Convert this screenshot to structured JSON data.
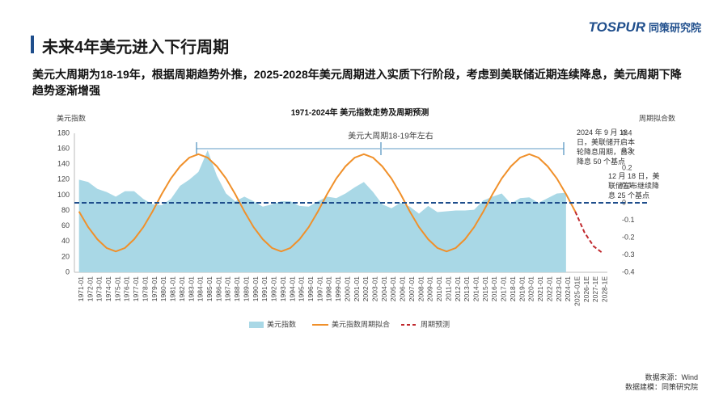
{
  "header": {
    "title": "未来4年美元进入下行周期",
    "logo": "TOSPUR",
    "logo_sub": "同策研究院",
    "subtitle": "美元大周期为18-19年，根据周期趋势外推，2025-2028年美元周期进入实质下行阶段，考虑到美联储近期连续降息，美元周期下降趋势逐渐增强"
  },
  "chart_data": {
    "type": "combo",
    "title": "1971-2024年 美元指数走势及周期预测",
    "ylabel": "美元指数",
    "y2label": "周期拟合数",
    "categories": [
      "1971-01",
      "1972-01",
      "1973-01",
      "1974-01",
      "1975-01",
      "1976-01",
      "1977-01",
      "1978-01",
      "1979-01",
      "1980-01",
      "1981-01",
      "1982-01",
      "1983-01",
      "1984-01",
      "1985-01",
      "1986-01",
      "1987-01",
      "1988-01",
      "1989-01",
      "1990-01",
      "1991-01",
      "1992-01",
      "1993-01",
      "1994-01",
      "1995-01",
      "1996-01",
      "1997-01",
      "1998-01",
      "1999-01",
      "2000-01",
      "2001-01",
      "2002-01",
      "2003-01",
      "2004-01",
      "2005-01",
      "2006-01",
      "2007-01",
      "2008-01",
      "2009-01",
      "2010-01",
      "2011-01",
      "2012-01",
      "2013-01",
      "2014-01",
      "2015-01",
      "2016-01",
      "2017-01",
      "2018-01",
      "2019-01",
      "2020-01",
      "2021-01",
      "2022-01",
      "2023-01",
      "2024-01",
      "2025-01E",
      "2026-1E",
      "2027-1E",
      "2028-1E"
    ],
    "series": [
      {
        "name": "美元指数",
        "kind": "area",
        "color": "#a9d8e6",
        "values": [
          120,
          117,
          108,
          104,
          98,
          105,
          105,
          95,
          88,
          87,
          95,
          112,
          120,
          130,
          158,
          125,
          102,
          92,
          98,
          92,
          85,
          88,
          92,
          92,
          86,
          85,
          92,
          98,
          96,
          102,
          110,
          117,
          104,
          88,
          83,
          90,
          85,
          76,
          86,
          78,
          79,
          80,
          80,
          81,
          93,
          98,
          102,
          89,
          96,
          97,
          90,
          96,
          102,
          103,
          null,
          null,
          null,
          null
        ]
      },
      {
        "name": "美元指数周期拟合",
        "kind": "line",
        "axis": "y2",
        "color": "#f0902a",
        "values": [
          -0.05,
          -0.14,
          -0.21,
          -0.26,
          -0.28,
          -0.26,
          -0.21,
          -0.14,
          -0.05,
          0.05,
          0.14,
          0.21,
          0.26,
          0.28,
          0.26,
          0.21,
          0.14,
          0.05,
          -0.05,
          -0.14,
          -0.21,
          -0.26,
          -0.28,
          -0.26,
          -0.21,
          -0.14,
          -0.05,
          0.05,
          0.14,
          0.21,
          0.26,
          0.28,
          0.26,
          0.21,
          0.14,
          0.05,
          -0.05,
          -0.14,
          -0.21,
          -0.26,
          -0.28,
          -0.26,
          -0.21,
          -0.14,
          -0.05,
          0.05,
          0.14,
          0.21,
          0.26,
          0.28,
          0.26,
          0.21,
          0.14,
          0.05,
          -0.05,
          null,
          null,
          null
        ]
      },
      {
        "name": "周期预测",
        "kind": "dashed",
        "axis": "y2",
        "color": "#c0282d",
        "values": [
          null,
          null,
          null,
          null,
          null,
          null,
          null,
          null,
          null,
          null,
          null,
          null,
          null,
          null,
          null,
          null,
          null,
          null,
          null,
          null,
          null,
          null,
          null,
          null,
          null,
          null,
          null,
          null,
          null,
          null,
          null,
          null,
          null,
          null,
          null,
          null,
          null,
          null,
          null,
          null,
          null,
          null,
          null,
          null,
          null,
          null,
          null,
          null,
          null,
          null,
          null,
          null,
          null,
          null,
          -0.05,
          -0.17,
          -0.25,
          -0.29
        ]
      }
    ],
    "reference_line": {
      "axis": "y2",
      "value": 0,
      "color": "#1f4e8c"
    },
    "ylim": [
      0,
      180
    ],
    "yticks": [
      0,
      20,
      40,
      60,
      80,
      100,
      120,
      140,
      160,
      180
    ],
    "y2lim": [
      -0.4,
      0.4
    ],
    "y2ticks": [
      -0.4,
      -0.3,
      -0.2,
      -0.1,
      0,
      0.1,
      0.2,
      0.3,
      0.4
    ],
    "annotations": [
      "美元大周期18-19年左右",
      "2024 年 9 月 18 日，美联储开启本轮降息周期，首次降息 50 个基点",
      "12 月 18 日，美联储宣布继续降息 25 个基点"
    ]
  },
  "footer": {
    "source": "数据来源：Wind",
    "model": "数据建模：同策研究院"
  }
}
